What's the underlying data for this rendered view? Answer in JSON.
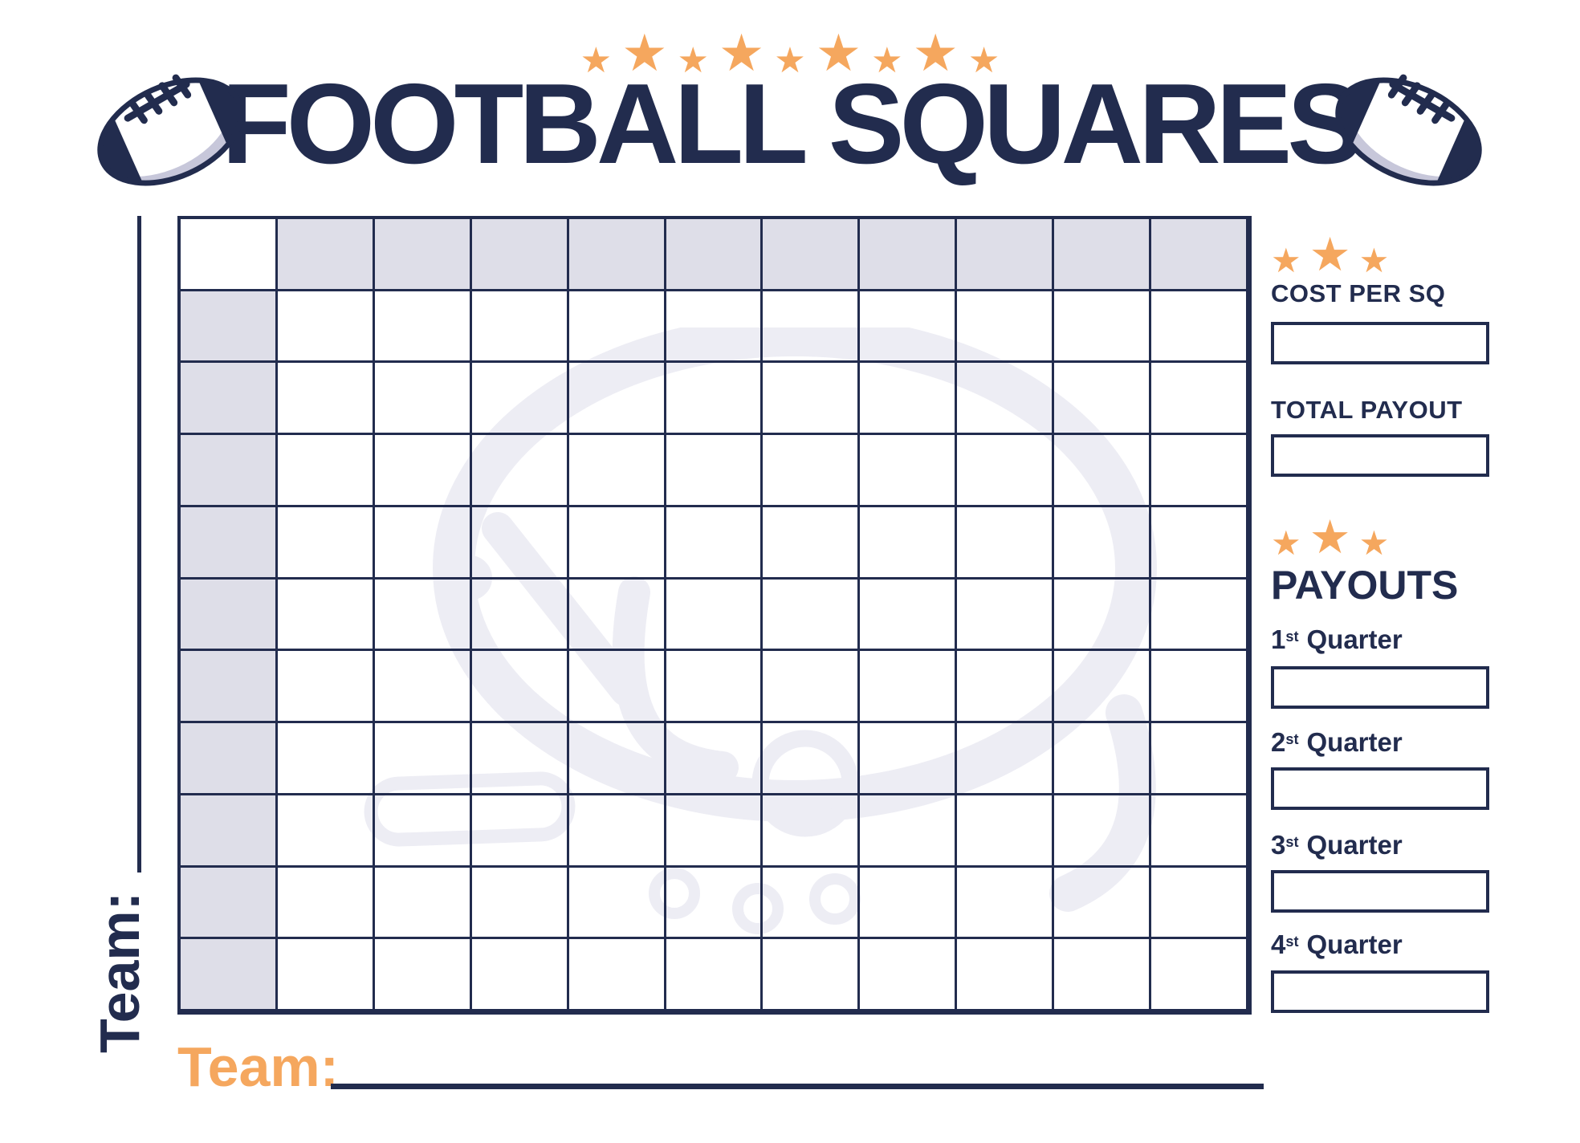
{
  "header": {
    "stars": {
      "count": 9
    },
    "title": "FOOTBALL SQUARES"
  },
  "teams": {
    "left_label": "Team:",
    "bottom_label": "Team:"
  },
  "grid": {
    "rows": 11,
    "cols": 11
  },
  "sidebar": {
    "cost_section": {
      "stars_count": 3,
      "label": "COST PER SQ"
    },
    "total_section": {
      "label": "TOTAL PAYOUT"
    },
    "payouts_section": {
      "stars_count": 3,
      "title": "PAYOUTS",
      "quarters": [
        {
          "num": "1",
          "sup": "st",
          "word": "Quarter"
        },
        {
          "num": "2",
          "sup": "st",
          "word": "Quarter"
        },
        {
          "num": "3",
          "sup": "st",
          "word": "Quarter"
        },
        {
          "num": "4",
          "sup": "st",
          "word": "Quarter"
        }
      ]
    }
  },
  "colors": {
    "navy": "#222C4E",
    "orange": "#F5A75E",
    "cell_shade": "#DEDEE8",
    "watermark": "#EDEDF4"
  }
}
